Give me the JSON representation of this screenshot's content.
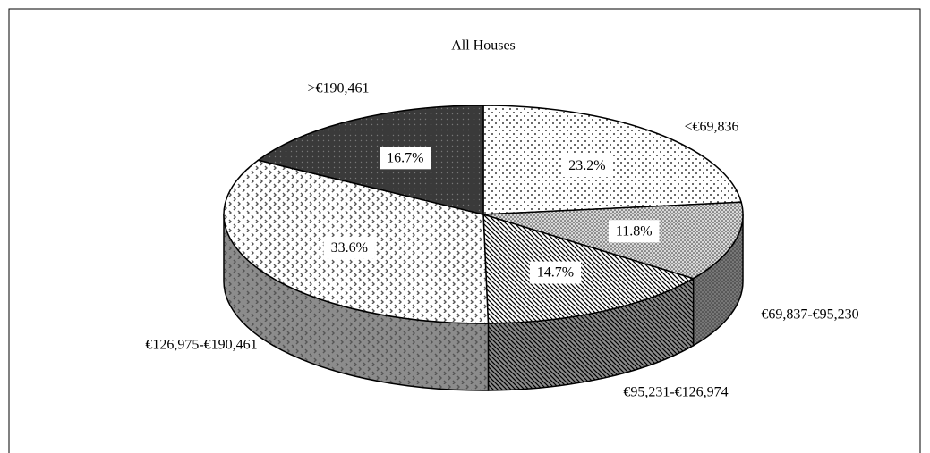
{
  "chart_data": {
    "type": "pie",
    "title": "All Houses",
    "categories": [
      "<€69,836",
      "€69,837-€95,230",
      "€95,231-€126,974",
      "€126,975-€190,461",
      ">€190,461"
    ],
    "values": [
      23.2,
      11.8,
      14.7,
      33.6,
      16.7
    ],
    "value_labels": [
      "23.2%",
      "11.8%",
      "14.7%",
      "33.6%",
      "16.7%"
    ],
    "colors": [
      "#ffffff",
      "#d8d8d8",
      "#ffffff",
      "#ffffff",
      "#3a3a3a"
    ],
    "three_d": true
  }
}
